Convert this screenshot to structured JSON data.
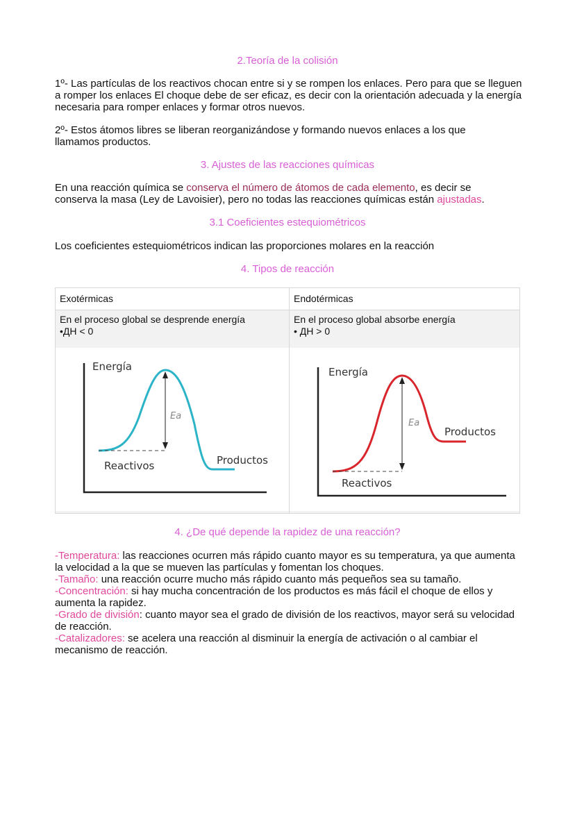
{
  "sections": {
    "collision_title": "2.Teoría de la colisión",
    "collision_p1": "1º- Las partículas de los reactivos chocan entre si y se rompen los enlaces. Pero para que se lleguen a romper los enlaces El choque debe de ser eficaz, es decir con la orientación adecuada y la energía necesaria para romper enlaces y formar otros nuevos.",
    "collision_p2": "2º- Estos átomos libres se liberan reorganizándose y formando nuevos enlaces a los que llamamos productos.",
    "adjust_title": "3. Ajustes de las reacciones químicas",
    "adjust_p": {
      "a": "En una reacción química se ",
      "b": "conserva el número de átomos de cada elemento",
      "c": ", es decir se conserva la masa (Ley de Lavoisier), pero no todas las reacciones químicas están ",
      "d": "ajustadas",
      "e": "."
    },
    "coef_title": "3.1 Coeficientes estequiométricos",
    "coef_p": "Los coeficientes estequiométricos indican las proporciones molares en la reacción",
    "types_title": "4. Tipos de reacción",
    "rate_title": "4. ¿De qué depende la rapidez de una reacción?"
  },
  "table": {
    "exo": {
      "header": "Exotérmicas",
      "line1": "En el proceso global se desprende energía",
      "line2": "•ДH < 0",
      "chart": {
        "y_label": "Energía",
        "ea": "Ea",
        "reactants": "Reactivos",
        "products": "Productos",
        "color": "#2bb3c8"
      }
    },
    "endo": {
      "header": "Endotérmicas",
      "line1": "En el proceso global absorbe energía",
      "line2": "• ДH > 0",
      "chart": {
        "y_label": "Energía",
        "ea": "Ea",
        "reactants": "Reactivos",
        "products": "Productos",
        "color": "#d8262c"
      }
    }
  },
  "factors": [
    {
      "term": "-Temperatura:",
      "text": " las reacciones ocurren más rápido cuanto mayor es su temperatura, ya que aumenta la velocidad a la que se mueven las partículas y fomentan los choques."
    },
    {
      "term": "-Tamaño:",
      "text": " una reacción ocurre mucho más rápido cuanto más pequeños sea su tamaño."
    },
    {
      "term": "-Concentración:",
      "text": " si hay mucha concentración de los productos es más fácil el choque de ellos y aumenta la rapidez."
    },
    {
      "term": "-Grado de división",
      "text": ": cuanto mayor sea el grado de división de los reactivos, mayor será su velocidad de reacción."
    },
    {
      "term": "-Catalizadores:",
      "text": " se acelera una reacción al disminuir la energía de activación o al cambiar el mecanismo de reacción."
    }
  ],
  "colors": {
    "heading": "#d95fd6",
    "highlight": "#9b2c57",
    "term": "#e0479a"
  }
}
